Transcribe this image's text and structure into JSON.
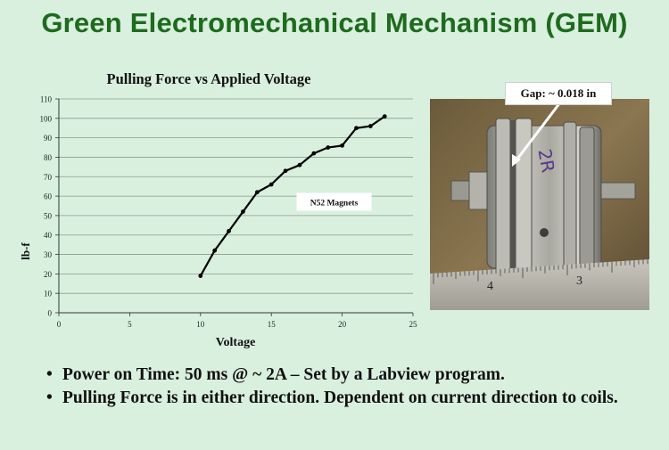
{
  "slide": {
    "title": "Green Electromechanical Mechanism (GEM)"
  },
  "chart_data": {
    "type": "line",
    "title": "Pulling Force vs Applied Voltage",
    "xlabel": "Voltage",
    "ylabel": "lb-f",
    "xlim": [
      0,
      25
    ],
    "ylim": [
      0,
      110
    ],
    "xticks": [
      0,
      5,
      10,
      15,
      20,
      25
    ],
    "yticks": [
      0,
      10,
      20,
      30,
      40,
      50,
      60,
      70,
      80,
      90,
      100,
      110
    ],
    "grid": "horizontal",
    "annotation": "N52 Magnets",
    "line_color": "#000000",
    "series": [
      {
        "x": [
          10,
          11,
          12,
          13,
          14,
          15,
          16,
          17,
          18,
          19,
          20,
          21,
          22,
          23
        ],
        "y": [
          19,
          32,
          42,
          52,
          62,
          66,
          73,
          76,
          82,
          85,
          86,
          95,
          96,
          101
        ]
      }
    ]
  },
  "photo": {
    "callout": "Gap: ~ 0.018 in",
    "label": "2R",
    "ruler_numbers": [
      "4",
      "3"
    ]
  },
  "bullets": [
    "Power on Time: 50 ms @ ~ 2A – Set by a Labview program.",
    "Pulling Force is in either direction. Dependent on current direction to coils."
  ]
}
